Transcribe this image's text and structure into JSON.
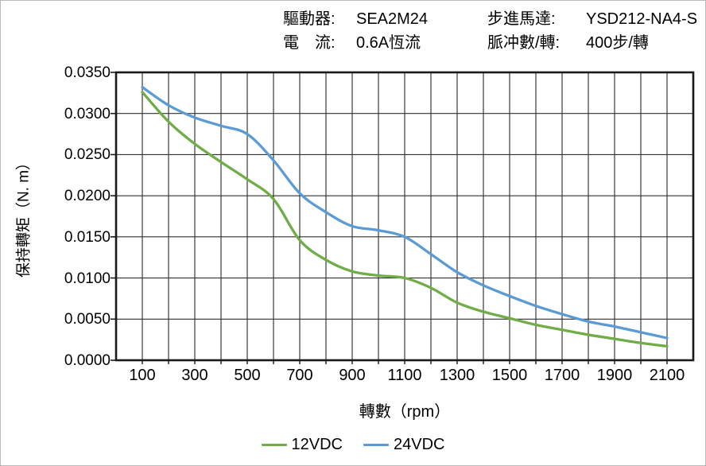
{
  "header": {
    "driver_label": "驅動器:",
    "driver_value": "SEA2M24",
    "current_label": "電　流:",
    "current_value": "0.6A恆流",
    "motor_label": "步進馬達:",
    "motor_value": "YSD212-NA4-S",
    "pulses_label": "脈冲數/轉:",
    "pulses_value": "400步/轉"
  },
  "chart_data": {
    "type": "line",
    "title": "",
    "xlabel": "轉數（rpm）",
    "ylabel": "保持轉矩（N. m）",
    "xlim": [
      0,
      2200
    ],
    "ylim": [
      0,
      0.035
    ],
    "grid": "on",
    "grid_color": "#303030",
    "border_color": "#1a1a1a",
    "x_grid_step": 100,
    "y_grid_step": 0.005,
    "x": [
      100,
      200,
      300,
      400,
      500,
      600,
      700,
      800,
      900,
      1000,
      1100,
      1200,
      1300,
      1400,
      1500,
      1600,
      1700,
      1800,
      1900,
      2000,
      2100
    ],
    "series": [
      {
        "name": "12VDC",
        "color": "#70AD47",
        "values": [
          0.0326,
          0.029,
          0.0263,
          0.0241,
          0.022,
          0.0196,
          0.0146,
          0.0122,
          0.0108,
          0.0103,
          0.01,
          0.0088,
          0.007,
          0.0059,
          0.0051,
          0.0043,
          0.0037,
          0.0031,
          0.0026,
          0.0021,
          0.0017
        ]
      },
      {
        "name": "24VDC",
        "color": "#5B9BD5",
        "values": [
          0.0332,
          0.031,
          0.0295,
          0.0285,
          0.0275,
          0.0243,
          0.0203,
          0.018,
          0.0163,
          0.0158,
          0.015,
          0.0129,
          0.0107,
          0.0091,
          0.0078,
          0.0066,
          0.0056,
          0.0047,
          0.0041,
          0.0034,
          0.0027
        ]
      }
    ],
    "x_ticks": [
      100,
      300,
      500,
      700,
      900,
      1100,
      1300,
      1500,
      1700,
      1900,
      2100
    ],
    "x_tick_labels": [
      "100",
      "300",
      "500",
      "700",
      "900",
      "1100",
      "1300",
      "1500",
      "1700",
      "1900",
      "2100"
    ],
    "y_ticks": [
      0,
      0.005,
      0.01,
      0.015,
      0.02,
      0.025,
      0.03,
      0.035
    ],
    "y_tick_labels": [
      "0.0000",
      "0.0050",
      "0.0100",
      "0.0150",
      "0.0200",
      "0.0250",
      "0.0300",
      "0.0350"
    ],
    "legend_position": "bottom"
  }
}
